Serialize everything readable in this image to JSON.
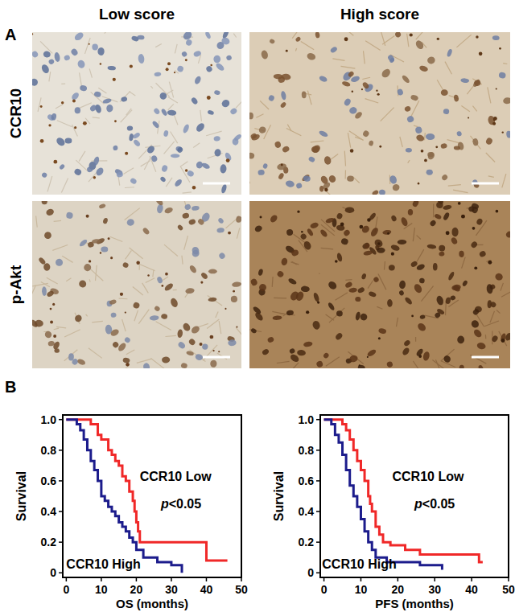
{
  "figure": {
    "panel_labels": [
      "A",
      "B"
    ],
    "columns": [
      "Low score",
      "High score"
    ],
    "rows": [
      "CCR10",
      "p-Akt"
    ]
  },
  "chart_data": [
    {
      "type": "line",
      "line_style": "step",
      "x_label": "OS (months)",
      "y_label": "Survival",
      "xlim": [
        -1,
        50
      ],
      "ylim": [
        -0.03,
        1.03
      ],
      "xticks": [
        0,
        10,
        20,
        30,
        40,
        50
      ],
      "yticks": [
        0,
        0.2,
        0.4,
        0.6,
        0.8,
        {
          "value": 1,
          "label": "1.0"
        }
      ],
      "annotations": [
        "CCR10 Low",
        "p<0.05",
        "CCR10 High"
      ],
      "series": [
        {
          "name": "CCR10 Low",
          "color": "#f02828",
          "x": [
            0,
            7,
            9,
            10,
            12,
            13,
            14,
            15,
            16,
            17,
            18,
            19,
            19.5,
            20,
            20.5,
            21,
            40,
            46
          ],
          "values": [
            1,
            0.97,
            0.9,
            0.87,
            0.8,
            0.77,
            0.73,
            0.7,
            0.63,
            0.6,
            0.53,
            0.47,
            0.4,
            0.33,
            0.27,
            0.2,
            0.08,
            0.08
          ]
        },
        {
          "name": "CCR10 High",
          "color": "#1c1c8c",
          "x": [
            0,
            3,
            4,
            5,
            6,
            7,
            8,
            9,
            10,
            11,
            12,
            13,
            14,
            15,
            16,
            17,
            18,
            19,
            20,
            22,
            26,
            30,
            33
          ],
          "values": [
            1,
            0.97,
            0.93,
            0.87,
            0.8,
            0.73,
            0.67,
            0.6,
            0.5,
            0.47,
            0.43,
            0.4,
            0.37,
            0.33,
            0.3,
            0.27,
            0.23,
            0.2,
            0.15,
            0.1,
            0.07,
            0.05,
            0
          ]
        }
      ]
    },
    {
      "type": "line",
      "line_style": "step",
      "x_label": "PFS (months)",
      "y_label": "Survival",
      "xlim": [
        -1,
        50
      ],
      "ylim": [
        -0.03,
        1.03
      ],
      "xticks": [
        0,
        10,
        20,
        30,
        40,
        50
      ],
      "yticks": [
        0,
        0.2,
        0.4,
        0.6,
        0.8,
        {
          "value": 1,
          "label": "1.0"
        }
      ],
      "annotations": [
        "CCR10 Low",
        "p<0.05",
        "CCR10 High"
      ],
      "series": [
        {
          "name": "CCR10 Low",
          "color": "#f02828",
          "x": [
            0,
            5,
            6,
            7,
            8,
            9,
            10,
            11,
            12,
            12.5,
            13,
            14,
            15,
            16,
            18,
            22,
            26,
            42,
            43
          ],
          "values": [
            1,
            0.97,
            0.93,
            0.87,
            0.8,
            0.73,
            0.67,
            0.6,
            0.5,
            0.45,
            0.4,
            0.3,
            0.25,
            0.2,
            0.18,
            0.15,
            0.12,
            0.07,
            0.07
          ]
        },
        {
          "name": "CCR10 High",
          "color": "#1c1c8c",
          "x": [
            0,
            2,
            3,
            4,
            5,
            6,
            7,
            8,
            9,
            10,
            11,
            12,
            13,
            14,
            17,
            26,
            32
          ],
          "values": [
            1,
            0.97,
            0.9,
            0.85,
            0.77,
            0.67,
            0.57,
            0.5,
            0.43,
            0.35,
            0.27,
            0.2,
            0.15,
            0.1,
            0.07,
            0.05,
            0.02
          ]
        }
      ]
    }
  ]
}
